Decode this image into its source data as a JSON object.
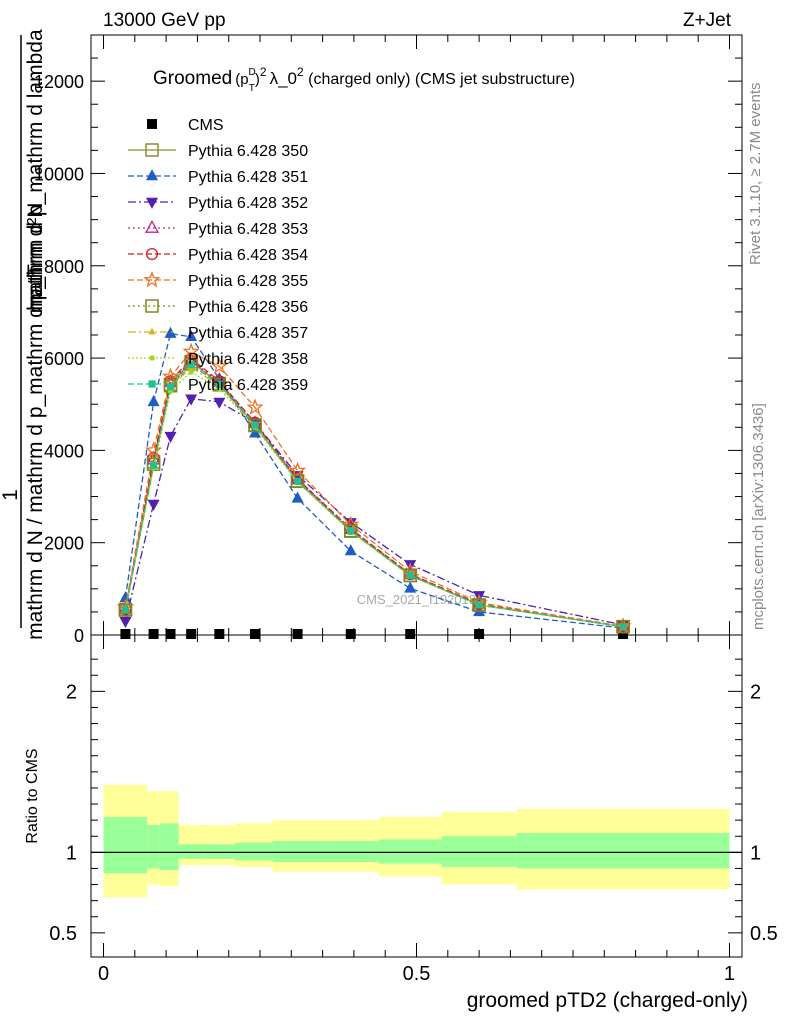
{
  "header": {
    "left": "13000 GeV pp",
    "right": "Z+Jet"
  },
  "side_labels": {
    "rivet": "Rivet 3.1.10, ≥ 2.7M events",
    "mcplots": "mcplots.cern.ch [arXiv:1306.3436]"
  },
  "watermark": "CMS_2021_I1920187",
  "chart_data": [
    {
      "type": "line",
      "title": "Groomed (p_T^D)^2 λ_0^2  (charged only) (CMS jet substructure)",
      "title_parts": {
        "prefix": "Groomed",
        "p": "(p",
        "sup_d": "D",
        "sub_t": "T",
        "close": ")",
        "sup_2": "2",
        "lambda": "λ_0",
        "sup_2b": "2",
        "suffix": "  (charged only) (CMS jet substructure)"
      },
      "ylabel": {
        "numerator": "mathrm d²N",
        "numerator_line2": "mathrm d p_mathrm d lambda",
        "denominator_top": "1",
        "denominator": "mathrm d N / mathrm d p_mathrm d p_T"
      },
      "xlim": [
        -0.02,
        1.02
      ],
      "ylim": [
        0,
        13000
      ],
      "yticks": [
        0,
        2000,
        4000,
        6000,
        8000,
        10000,
        12000
      ],
      "ytick_labels": [
        "0",
        "2000",
        "4000",
        "6000",
        "8000",
        "10000",
        "12000"
      ],
      "grid": false,
      "legend_placement": "top-left",
      "x": [
        0.035,
        0.08,
        0.107,
        0.14,
        0.185,
        0.242,
        0.31,
        0.395,
        0.49,
        0.6,
        0.83
      ],
      "series": [
        {
          "name": "CMS",
          "color": "#000000",
          "marker": "square-filled",
          "dash": "none",
          "values": [
            0,
            0,
            0,
            0,
            0,
            0,
            0,
            0,
            0,
            0,
            0
          ]
        },
        {
          "name": "Pythia 6.428 350",
          "color": "#8c8c30",
          "marker": "square-open",
          "dash": "solid",
          "values": [
            550,
            3750,
            5430,
            5920,
            5450,
            4550,
            3340,
            2260,
            1290,
            650,
            180
          ]
        },
        {
          "name": "Pythia 6.428 351",
          "color": "#1f5dc0",
          "marker": "triangle-up-filled",
          "dash": "6,3",
          "values": [
            800,
            5050,
            6530,
            6460,
            5550,
            4370,
            2960,
            1820,
            1010,
            500,
            150
          ]
        },
        {
          "name": "Pythia 6.428 352",
          "color": "#5020b0",
          "marker": "triangle-down-filled",
          "dash": "8,3,2,3",
          "values": [
            300,
            2840,
            4310,
            5120,
            5050,
            4600,
            3460,
            2440,
            1530,
            860,
            220
          ]
        },
        {
          "name": "Pythia 6.428 353",
          "color": "#c0208a",
          "marker": "triangle-up-open",
          "dash": "2,3",
          "values": [
            550,
            3800,
            5480,
            5950,
            5480,
            4590,
            3370,
            2290,
            1310,
            660,
            180
          ]
        },
        {
          "name": "Pythia 6.428 354",
          "color": "#d01c1c",
          "marker": "circle-open",
          "dash": "6,3",
          "values": [
            560,
            3840,
            5500,
            5990,
            5500,
            4600,
            3380,
            2300,
            1320,
            670,
            180
          ]
        },
        {
          "name": "Pythia 6.428 355",
          "color": "#f07020",
          "marker": "star-open",
          "dash": "6,3",
          "values": [
            600,
            4000,
            5600,
            6140,
            5820,
            4930,
            3560,
            2390,
            1380,
            700,
            190
          ]
        },
        {
          "name": "Pythia 6.428 356",
          "color": "#7a8a1a",
          "marker": "square-open",
          "dash": "2,3",
          "values": [
            540,
            3700,
            5400,
            5870,
            5420,
            4540,
            3330,
            2250,
            1290,
            650,
            180
          ]
        },
        {
          "name": "Pythia 6.428 357",
          "color": "#d6b416",
          "marker": "tri-small",
          "dash": "8,3,2,3",
          "values": [
            540,
            3680,
            5360,
            5800,
            5400,
            4530,
            3320,
            2250,
            1290,
            650,
            180
          ]
        },
        {
          "name": "Pythia 6.428 358",
          "color": "#a6d420",
          "marker": "dot-small",
          "dash": "2,2",
          "values": [
            530,
            3620,
            5280,
            5700,
            5340,
            4500,
            3310,
            2240,
            1280,
            650,
            180
          ]
        },
        {
          "name": "Pythia 6.428 359",
          "color": "#20c090",
          "marker": "square-small-filled",
          "dash": "6,3",
          "values": [
            540,
            3680,
            5380,
            5860,
            5430,
            4550,
            3330,
            2260,
            1290,
            650,
            180
          ]
        }
      ]
    },
    {
      "type": "area",
      "ylabel": "Ratio to CMS",
      "xlabel": "groomed pTD2 (charged-only)",
      "xlim": [
        -0.02,
        1.02
      ],
      "ylim": [
        0.35,
        2.35
      ],
      "xticks": [
        0,
        0.5,
        1
      ],
      "xtick_labels": [
        "0",
        "0.5",
        "1"
      ],
      "yticks": [
        0.5,
        1,
        2
      ],
      "ytick_labels": [
        "0.5",
        "1",
        "2"
      ],
      "reference_line": 1,
      "bins": [
        {
          "lo": 0.0,
          "hi": 0.07,
          "stat_lo": 0.87,
          "stat_hi": 1.22,
          "tot_lo": 0.72,
          "tot_hi": 1.42
        },
        {
          "lo": 0.07,
          "hi": 0.09,
          "stat_lo": 0.9,
          "stat_hi": 1.17,
          "tot_lo": 0.8,
          "tot_hi": 1.38
        },
        {
          "lo": 0.09,
          "hi": 0.12,
          "stat_lo": 0.89,
          "stat_hi": 1.18,
          "tot_lo": 0.79,
          "tot_hi": 1.38
        },
        {
          "lo": 0.12,
          "hi": 0.16,
          "stat_lo": 0.96,
          "stat_hi": 1.05,
          "tot_lo": 0.92,
          "tot_hi": 1.17
        },
        {
          "lo": 0.16,
          "hi": 0.21,
          "stat_lo": 0.96,
          "stat_hi": 1.05,
          "tot_lo": 0.92,
          "tot_hi": 1.17
        },
        {
          "lo": 0.21,
          "hi": 0.27,
          "stat_lo": 0.95,
          "stat_hi": 1.06,
          "tot_lo": 0.91,
          "tot_hi": 1.18
        },
        {
          "lo": 0.27,
          "hi": 0.35,
          "stat_lo": 0.94,
          "stat_hi": 1.07,
          "tot_lo": 0.88,
          "tot_hi": 1.2
        },
        {
          "lo": 0.35,
          "hi": 0.44,
          "stat_lo": 0.94,
          "stat_hi": 1.07,
          "tot_lo": 0.88,
          "tot_hi": 1.2
        },
        {
          "lo": 0.44,
          "hi": 0.54,
          "stat_lo": 0.93,
          "stat_hi": 1.08,
          "tot_lo": 0.85,
          "tot_hi": 1.22
        },
        {
          "lo": 0.54,
          "hi": 0.66,
          "stat_lo": 0.91,
          "stat_hi": 1.1,
          "tot_lo": 0.8,
          "tot_hi": 1.25
        },
        {
          "lo": 0.66,
          "hi": 1.0,
          "stat_lo": 0.9,
          "stat_hi": 1.12,
          "tot_lo": 0.77,
          "tot_hi": 1.27
        }
      ],
      "colors": {
        "stat": "#99ff99",
        "total": "#ffff99"
      }
    }
  ]
}
